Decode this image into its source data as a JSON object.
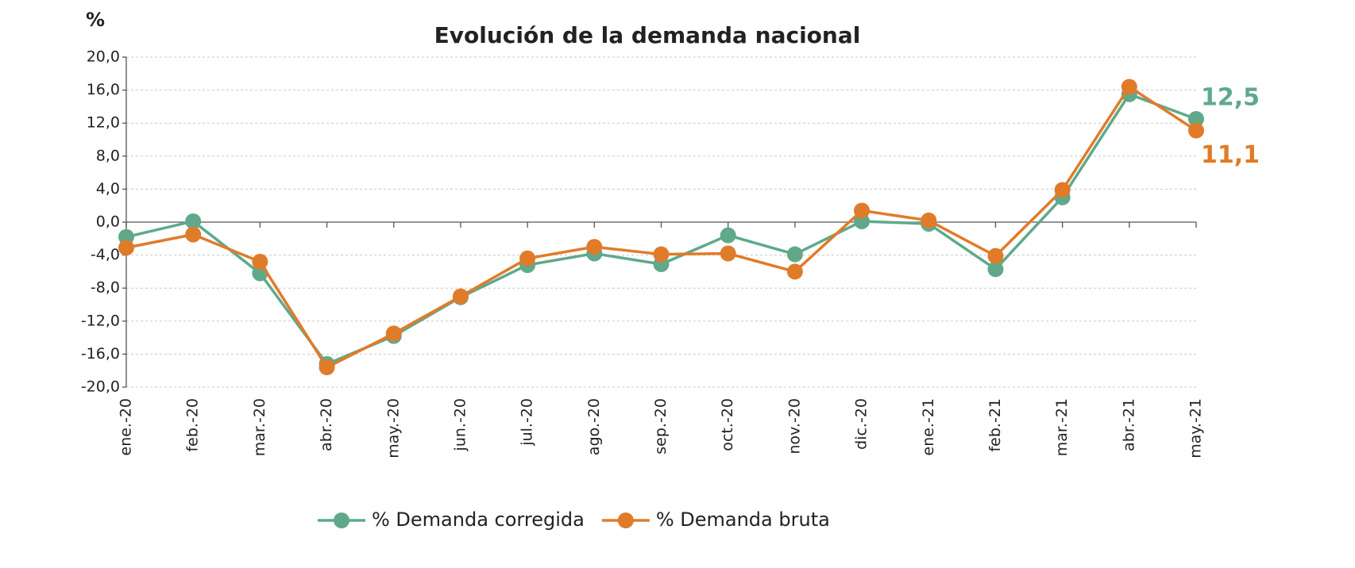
{
  "chart_data": {
    "type": "line",
    "title": "Evolución de la demanda nacional",
    "y_label": "%",
    "categories": [
      "ene.-20",
      "feb.-20",
      "mar.-20",
      "abr.-20",
      "may.-20",
      "jun.-20",
      "jul.-20",
      "ago.-20",
      "sep.-20",
      "oct.-20",
      "nov.-20",
      "dic.-20",
      "ene.-21",
      "feb.-21",
      "mar.-21",
      "abr.-21",
      "may.-21"
    ],
    "series": [
      {
        "name": "% Demanda corregida",
        "color": "#5fa98a",
        "values": [
          -1.8,
          0.1,
          -6.2,
          -17.2,
          -13.8,
          -9.1,
          -5.2,
          -3.8,
          -5.1,
          -1.6,
          -3.9,
          0.1,
          -0.2,
          -5.7,
          3.0,
          15.5,
          12.5
        ],
        "value_labels": [
          null,
          null,
          null,
          null,
          null,
          null,
          null,
          null,
          null,
          null,
          null,
          null,
          null,
          null,
          null,
          null,
          "12,5"
        ]
      },
      {
        "name": "% Demanda bruta",
        "color": "#e07b2a",
        "values": [
          -3.1,
          -1.5,
          -4.8,
          -17.6,
          -13.5,
          -9.0,
          -4.4,
          -3.0,
          -3.9,
          -3.8,
          -6.0,
          1.4,
          0.2,
          -4.1,
          3.9,
          16.4,
          11.1
        ],
        "value_labels": [
          null,
          null,
          null,
          null,
          null,
          null,
          null,
          null,
          null,
          null,
          null,
          null,
          null,
          null,
          null,
          null,
          "11,1"
        ]
      }
    ],
    "ylim": [
      -20,
      20
    ],
    "yticks": [
      {
        "value": -20,
        "label": "-20,0"
      },
      {
        "value": -16,
        "label": "-16,0"
      },
      {
        "value": -12,
        "label": "-12,0"
      },
      {
        "value": -8,
        "label": "-8,0"
      },
      {
        "value": -4,
        "label": "-4,0"
      },
      {
        "value": 0,
        "label": "0,0"
      },
      {
        "value": 4,
        "label": "4,0"
      },
      {
        "value": 8,
        "label": "8,0"
      },
      {
        "value": 12,
        "label": "12,0"
      },
      {
        "value": 16,
        "label": "16,0"
      },
      {
        "value": 20,
        "label": "20,0"
      }
    ],
    "grid": true,
    "legend": "bottom"
  }
}
